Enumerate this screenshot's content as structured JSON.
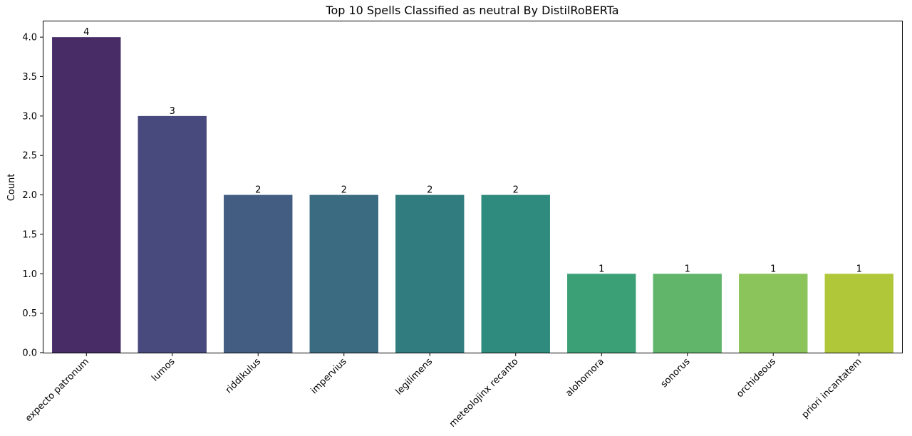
{
  "chart_data": {
    "type": "bar",
    "title": "Top 10 Spells Classified as neutral By DistilRoBERTa",
    "xlabel": "",
    "ylabel": "Count",
    "ylim": [
      0,
      4.2
    ],
    "yticks": [
      "0.0",
      "0.5",
      "1.0",
      "1.5",
      "2.0",
      "2.5",
      "3.0",
      "3.5",
      "4.0"
    ],
    "categories": [
      "expecto patronum",
      "lumos",
      "riddikulus",
      "impervius",
      "legilimens",
      "meteolojinx recanto",
      "alohomora",
      "sonorus",
      "orchideous",
      "priori incantatem"
    ],
    "values": [
      4,
      3,
      2,
      2,
      2,
      2,
      1,
      1,
      1,
      1
    ],
    "colors": [
      "#472c66",
      "#484a7e",
      "#435c81",
      "#3a6b80",
      "#317c7f",
      "#2e8b7d",
      "#3ca077",
      "#60b56b",
      "#8bc45b",
      "#b0c73a"
    ],
    "grid": false,
    "legend": "none"
  }
}
